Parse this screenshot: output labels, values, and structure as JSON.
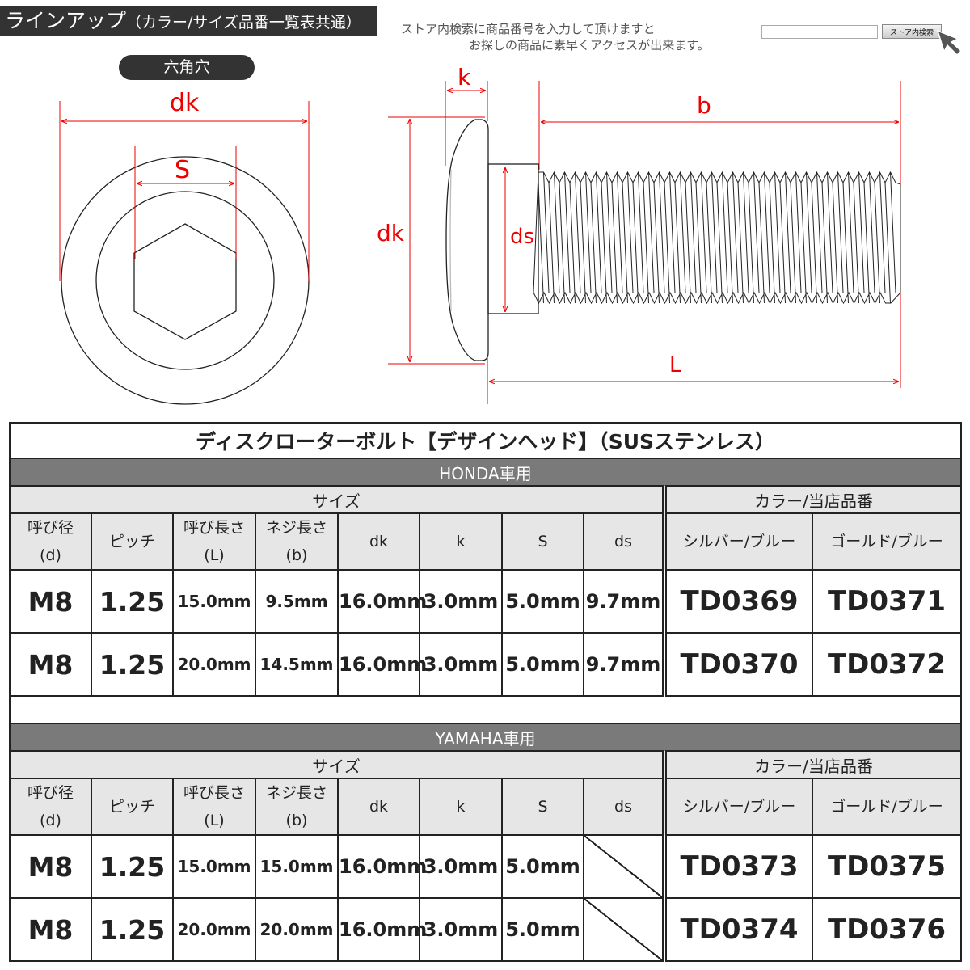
{
  "header": {
    "title": "ラインアップ",
    "title_sub": "（カラー/サイズ品番一覧表共通）",
    "hint_line1": "ストア内検索に商品番号を入力して頂けますと",
    "hint_line2": "お探しの商品に素早くアクセスが出来ます。",
    "search_placeholder": "",
    "search_button": "ストア内検索",
    "hex_label": "六角穴"
  },
  "diagram": {
    "dk": "dk",
    "S": "S",
    "k": "k",
    "b": "b",
    "dk2": "dk",
    "ds": "ds",
    "L": "L"
  },
  "table": {
    "title": "ディスクローターボルト【デザインヘッド】（SUSステンレス）",
    "size_header": "サイズ",
    "color_header": "カラー/当店品番",
    "columns": [
      [
        "呼び径",
        "(d)"
      ],
      [
        "ピッチ",
        ""
      ],
      [
        "呼び長さ",
        "(L)"
      ],
      [
        "ネジ長さ",
        "(b)"
      ],
      [
        "dk",
        ""
      ],
      [
        "k",
        ""
      ],
      [
        "S",
        ""
      ],
      [
        "ds",
        ""
      ],
      [
        "シルバー/ブルー",
        ""
      ],
      [
        "ゴールド/ブルー",
        ""
      ]
    ],
    "sections": [
      {
        "maker": "HONDA車用",
        "rows": [
          [
            "M8",
            "1.25",
            "15.0mm",
            "9.5mm",
            "16.0mm",
            "3.0mm",
            "5.0mm",
            "9.7mm",
            "TD0369",
            "TD0371"
          ],
          [
            "M8",
            "1.25",
            "20.0mm",
            "14.5mm",
            "16.0mm",
            "3.0mm",
            "5.0mm",
            "9.7mm",
            "TD0370",
            "TD0372"
          ]
        ]
      },
      {
        "maker": "YAMAHA車用",
        "rows": [
          [
            "M8",
            "1.25",
            "15.0mm",
            "15.0mm",
            "16.0mm",
            "3.0mm",
            "5.0mm",
            null,
            "TD0373",
            "TD0375"
          ],
          [
            "M8",
            "1.25",
            "20.0mm",
            "20.0mm",
            "16.0mm",
            "3.0mm",
            "5.0mm",
            null,
            "TD0374",
            "TD0376"
          ]
        ]
      }
    ]
  }
}
